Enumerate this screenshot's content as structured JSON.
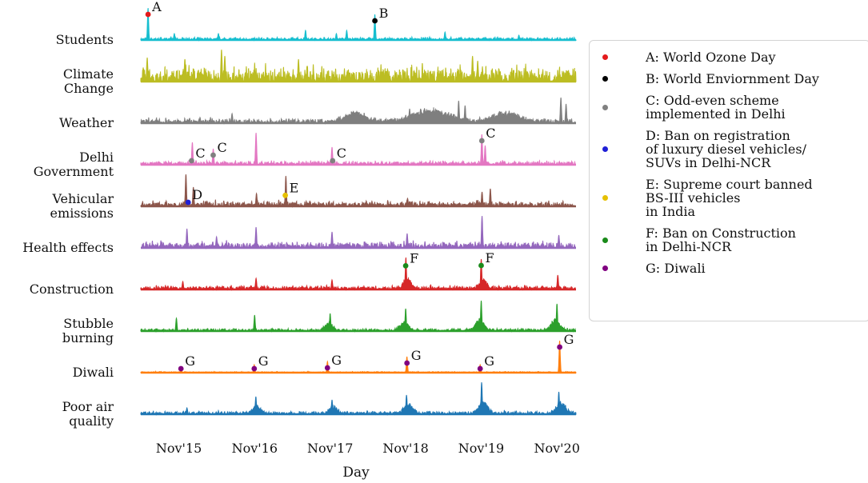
{
  "chart_data": {
    "type": "area",
    "xlabel": "Day",
    "x_ticks": [
      "Nov'15",
      "Nov'16",
      "Nov'17",
      "Nov'18",
      "Nov'19",
      "Nov'20"
    ],
    "x_range": [
      "2015-05",
      "2021-02"
    ],
    "series": [
      {
        "name": "Students",
        "color": "#17becf",
        "label_lines": [
          "Students"
        ],
        "spikes": [
          [
            "2015-06-05",
            1.0
          ],
          [
            "2018-06-05",
            0.8
          ],
          [
            "2015-10-10",
            0.2
          ],
          [
            "2016-05-10",
            0.2
          ],
          [
            "2017-07-05",
            0.3
          ],
          [
            "2017-12-01",
            0.2
          ],
          [
            "2018-01-20",
            0.3
          ],
          [
            "2019-05-10",
            0.25
          ],
          [
            "2020-05-01",
            0.15
          ]
        ],
        "bumps": [],
        "noise": 0.07
      },
      {
        "name": "Climate Change",
        "color": "#bcbd22",
        "label_lines": [
          "Climate",
          "Change"
        ],
        "spikes": [
          [
            "2016-05-25",
            1.0
          ],
          [
            "2016-06-10",
            0.8
          ],
          [
            "2015-06-01",
            0.75
          ],
          [
            "2015-11-30",
            0.7
          ],
          [
            "2019-09-20",
            0.8
          ],
          [
            "2019-10-15",
            0.65
          ],
          [
            "2017-06-01",
            0.7
          ]
        ],
        "bumps": [],
        "noise": 0.42
      },
      {
        "name": "Weather",
        "color": "#7f7f7f",
        "label_lines": [
          "Weather"
        ],
        "spikes": [
          [
            "2020-11-20",
            0.8
          ],
          [
            "2020-12-15",
            0.6
          ],
          [
            "2019-07-15",
            0.7
          ],
          [
            "2019-08-15",
            0.55
          ],
          [
            "2018-11-20",
            0.45
          ],
          [
            "2016-07-15",
            0.3
          ]
        ],
        "bumps": [
          [
            "2019-03-01",
            0.4,
            120
          ],
          [
            "2020-03-01",
            0.3,
            90
          ],
          [
            "2018-03-01",
            0.3,
            60
          ]
        ],
        "noise": 0.13
      },
      {
        "name": "Delhi Government",
        "color": "#e377c2",
        "label_lines": [
          "Delhi",
          "Government"
        ],
        "spikes": [
          [
            "2016-01-05",
            0.7
          ],
          [
            "2016-04-15",
            0.5
          ],
          [
            "2016-11-08",
            1.0
          ],
          [
            "2017-11-10",
            0.55
          ],
          [
            "2019-11-04",
            0.95
          ],
          [
            "2019-11-20",
            0.6
          ]
        ],
        "bumps": [],
        "noise": 0.1
      },
      {
        "name": "Vehicular emissions",
        "color": "#8c564b",
        "label_lines": [
          "Vehicular",
          "emissions"
        ],
        "spikes": [
          [
            "2015-12-05",
            1.0
          ],
          [
            "2016-01-10",
            0.6
          ],
          [
            "2017-04-01",
            0.95
          ],
          [
            "2019-12-15",
            0.55
          ],
          [
            "2019-11-05",
            0.45
          ],
          [
            "2016-11-10",
            0.4
          ],
          [
            "2018-11-10",
            0.25
          ]
        ],
        "bumps": [],
        "noise": 0.14
      },
      {
        "name": "Health effects",
        "color": "#9467bd",
        "label_lines": [
          "Health effects"
        ],
        "spikes": [
          [
            "2019-11-05",
            1.0
          ],
          [
            "2015-12-10",
            0.6
          ],
          [
            "2016-11-08",
            0.65
          ],
          [
            "2017-11-10",
            0.5
          ],
          [
            "2018-11-08",
            0.45
          ],
          [
            "2020-11-10",
            0.4
          ],
          [
            "2016-05-01",
            0.35
          ]
        ],
        "bumps": [],
        "noise": 0.17
      },
      {
        "name": "Construction",
        "color": "#d62728",
        "label_lines": [
          "Construction"
        ],
        "spikes": [
          [
            "2018-11-02",
            1.0
          ],
          [
            "2019-11-01",
            0.95
          ],
          [
            "2020-11-05",
            0.45
          ],
          [
            "2016-11-08",
            0.35
          ],
          [
            "2017-11-10",
            0.3
          ],
          [
            "2015-11-20",
            0.25
          ]
        ],
        "bumps": [
          [
            "2018-11-10",
            0.35,
            25
          ],
          [
            "2019-11-10",
            0.3,
            25
          ]
        ],
        "noise": 0.1
      },
      {
        "name": "Stubble burning",
        "color": "#2ca02c",
        "label_lines": [
          "Stubble",
          "burning"
        ],
        "spikes": [
          [
            "2019-11-01",
            0.95
          ],
          [
            "2020-11-01",
            0.85
          ],
          [
            "2018-11-01",
            0.7
          ],
          [
            "2017-11-01",
            0.55
          ],
          [
            "2016-11-01",
            0.5
          ],
          [
            "2015-10-20",
            0.4
          ]
        ],
        "bumps": [
          [
            "2019-10-25",
            0.35,
            30
          ],
          [
            "2020-10-25",
            0.35,
            30
          ],
          [
            "2018-10-25",
            0.3,
            25
          ],
          [
            "2017-10-25",
            0.25,
            25
          ]
        ],
        "noise": 0.07
      },
      {
        "name": "Diwali",
        "color": "#ff7f0e",
        "label_lines": [
          "Diwali"
        ],
        "spikes": [
          [
            "2020-11-14",
            1.0
          ],
          [
            "2018-11-07",
            0.5
          ],
          [
            "2017-10-19",
            0.35
          ],
          [
            "2016-10-30",
            0.25
          ],
          [
            "2019-10-27",
            0.25
          ],
          [
            "2015-11-11",
            0.15
          ]
        ],
        "bumps": [],
        "noise": 0.03
      },
      {
        "name": "Poor air quality",
        "color": "#1f77b4",
        "label_lines": [
          "Poor air",
          "quality"
        ],
        "spikes": [
          [
            "2019-11-03",
            1.0
          ],
          [
            "2020-11-10",
            0.7
          ],
          [
            "2018-11-05",
            0.6
          ],
          [
            "2016-11-07",
            0.55
          ],
          [
            "2017-11-10",
            0.45
          ],
          [
            "2015-12-10",
            0.2
          ]
        ],
        "bumps": [
          [
            "2019-11-10",
            0.4,
            30
          ],
          [
            "2020-11-20",
            0.35,
            30
          ],
          [
            "2018-11-15",
            0.3,
            30
          ],
          [
            "2016-11-12",
            0.25,
            25
          ],
          [
            "2017-11-15",
            0.25,
            25
          ]
        ],
        "noise": 0.08
      }
    ],
    "annotations": [
      {
        "series": "Students",
        "date": "2015-06-05",
        "letter": "A",
        "color": "#e41a1c"
      },
      {
        "series": "Students",
        "date": "2018-06-05",
        "letter": "B",
        "color": "#000000"
      },
      {
        "series": "Delhi Government",
        "date": "2016-01-01",
        "letter": "C",
        "color": "#808080"
      },
      {
        "series": "Delhi Government",
        "date": "2016-04-15",
        "letter": "C",
        "color": "#808080"
      },
      {
        "series": "Delhi Government",
        "date": "2017-11-13",
        "letter": "C",
        "color": "#808080"
      },
      {
        "series": "Delhi Government",
        "date": "2019-11-04",
        "letter": "C",
        "color": "#808080"
      },
      {
        "series": "Vehicular emissions",
        "date": "2015-12-16",
        "letter": "D",
        "color": "#1f1fd6"
      },
      {
        "series": "Vehicular emissions",
        "date": "2017-03-29",
        "letter": "E",
        "color": "#e6c000"
      },
      {
        "series": "Construction",
        "date": "2018-11-01",
        "letter": "F",
        "color": "#1a8a1a"
      },
      {
        "series": "Construction",
        "date": "2019-11-01",
        "letter": "F",
        "color": "#1a8a1a"
      },
      {
        "series": "Diwali",
        "date": "2015-11-11",
        "letter": "G",
        "color": "#800080"
      },
      {
        "series": "Diwali",
        "date": "2016-10-30",
        "letter": "G",
        "color": "#800080"
      },
      {
        "series": "Diwali",
        "date": "2017-10-19",
        "letter": "G",
        "color": "#800080"
      },
      {
        "series": "Diwali",
        "date": "2018-11-07",
        "letter": "G",
        "color": "#800080"
      },
      {
        "series": "Diwali",
        "date": "2019-10-27",
        "letter": "G",
        "color": "#800080"
      },
      {
        "series": "Diwali",
        "date": "2020-11-14",
        "letter": "G",
        "color": "#800080"
      }
    ],
    "legend": {
      "placement": "right",
      "items": [
        {
          "color": "#e41a1c",
          "label": "A: World Ozone Day"
        },
        {
          "color": "#000000",
          "label": "B: World Enviornment Day"
        },
        {
          "color": "#808080",
          "label": "C: Odd-even scheme\nimplemented in Delhi"
        },
        {
          "color": "#1f1fd6",
          "label": "D: Ban on registration\nof luxury diesel vehicles/\nSUVs in Delhi-NCR"
        },
        {
          "color": "#e6c000",
          "label": "E: Supreme court banned\nBS-III vehicles\nin India"
        },
        {
          "color": "#1a8a1a",
          "label": "F: Ban on Construction\nin Delhi-NCR"
        },
        {
          "color": "#800080",
          "label": "G: Diwali"
        }
      ]
    }
  }
}
